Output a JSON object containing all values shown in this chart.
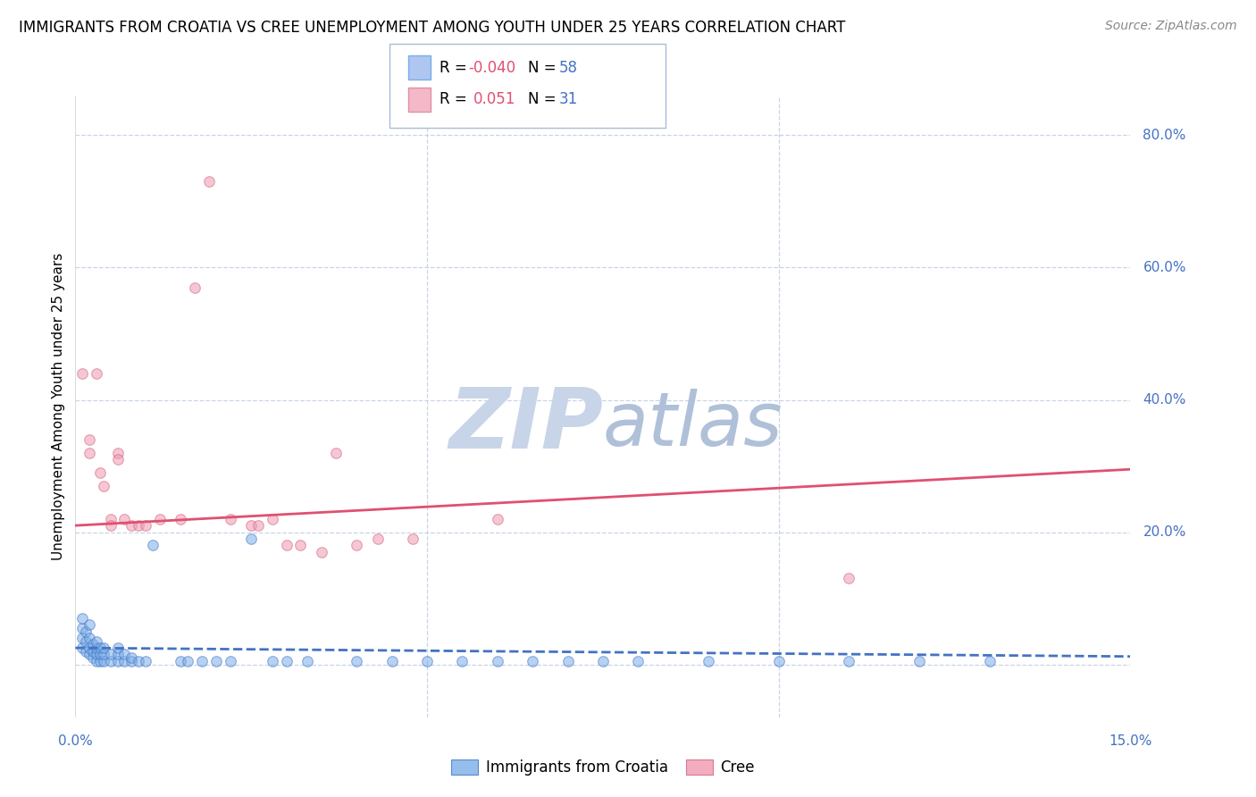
{
  "title": "IMMIGRANTS FROM CROATIA VS CREE UNEMPLOYMENT AMONG YOUTH UNDER 25 YEARS CORRELATION CHART",
  "source": "Source: ZipAtlas.com",
  "ylabel": "Unemployment Among Youth under 25 years",
  "x_min": 0.0,
  "x_max": 0.15,
  "y_min": -0.08,
  "y_max": 0.86,
  "y_ticks": [
    0.0,
    0.2,
    0.4,
    0.6,
    0.8
  ],
  "y_tick_labels": [
    "",
    "20.0%",
    "40.0%",
    "60.0%",
    "80.0%"
  ],
  "watermark_zip": "ZIP",
  "watermark_atlas": "atlas",
  "watermark_color_zip": "#c8d4e8",
  "watermark_color_atlas": "#b0c0d8",
  "blue_scatter": [
    [
      0.001,
      0.025
    ],
    [
      0.001,
      0.04
    ],
    [
      0.001,
      0.055
    ],
    [
      0.001,
      0.07
    ],
    [
      0.0015,
      0.02
    ],
    [
      0.0015,
      0.035
    ],
    [
      0.0015,
      0.05
    ],
    [
      0.002,
      0.015
    ],
    [
      0.002,
      0.025
    ],
    [
      0.002,
      0.04
    ],
    [
      0.002,
      0.06
    ],
    [
      0.0025,
      0.01
    ],
    [
      0.0025,
      0.02
    ],
    [
      0.0025,
      0.03
    ],
    [
      0.003,
      0.005
    ],
    [
      0.003,
      0.015
    ],
    [
      0.003,
      0.025
    ],
    [
      0.003,
      0.035
    ],
    [
      0.0035,
      0.005
    ],
    [
      0.0035,
      0.015
    ],
    [
      0.0035,
      0.025
    ],
    [
      0.004,
      0.005
    ],
    [
      0.004,
      0.015
    ],
    [
      0.004,
      0.025
    ],
    [
      0.005,
      0.005
    ],
    [
      0.005,
      0.015
    ],
    [
      0.006,
      0.005
    ],
    [
      0.006,
      0.015
    ],
    [
      0.006,
      0.025
    ],
    [
      0.007,
      0.005
    ],
    [
      0.007,
      0.015
    ],
    [
      0.008,
      0.005
    ],
    [
      0.008,
      0.01
    ],
    [
      0.009,
      0.005
    ],
    [
      0.01,
      0.005
    ],
    [
      0.011,
      0.18
    ],
    [
      0.015,
      0.005
    ],
    [
      0.016,
      0.005
    ],
    [
      0.018,
      0.005
    ],
    [
      0.02,
      0.005
    ],
    [
      0.022,
      0.005
    ],
    [
      0.025,
      0.19
    ],
    [
      0.028,
      0.005
    ],
    [
      0.03,
      0.005
    ],
    [
      0.033,
      0.005
    ],
    [
      0.04,
      0.005
    ],
    [
      0.045,
      0.005
    ],
    [
      0.05,
      0.005
    ],
    [
      0.055,
      0.005
    ],
    [
      0.06,
      0.005
    ],
    [
      0.065,
      0.005
    ],
    [
      0.07,
      0.005
    ],
    [
      0.075,
      0.005
    ],
    [
      0.08,
      0.005
    ],
    [
      0.09,
      0.005
    ],
    [
      0.1,
      0.005
    ],
    [
      0.11,
      0.005
    ],
    [
      0.12,
      0.005
    ],
    [
      0.13,
      0.005
    ]
  ],
  "pink_scatter": [
    [
      0.001,
      0.44
    ],
    [
      0.002,
      0.34
    ],
    [
      0.002,
      0.32
    ],
    [
      0.003,
      0.44
    ],
    [
      0.0035,
      0.29
    ],
    [
      0.004,
      0.27
    ],
    [
      0.005,
      0.22
    ],
    [
      0.005,
      0.21
    ],
    [
      0.006,
      0.32
    ],
    [
      0.006,
      0.31
    ],
    [
      0.007,
      0.22
    ],
    [
      0.008,
      0.21
    ],
    [
      0.009,
      0.21
    ],
    [
      0.01,
      0.21
    ],
    [
      0.012,
      0.22
    ],
    [
      0.015,
      0.22
    ],
    [
      0.017,
      0.57
    ],
    [
      0.019,
      0.73
    ],
    [
      0.022,
      0.22
    ],
    [
      0.025,
      0.21
    ],
    [
      0.026,
      0.21
    ],
    [
      0.028,
      0.22
    ],
    [
      0.03,
      0.18
    ],
    [
      0.032,
      0.18
    ],
    [
      0.035,
      0.17
    ],
    [
      0.037,
      0.32
    ],
    [
      0.04,
      0.18
    ],
    [
      0.043,
      0.19
    ],
    [
      0.048,
      0.19
    ],
    [
      0.06,
      0.22
    ],
    [
      0.11,
      0.13
    ]
  ],
  "blue_line": {
    "x": [
      0.0,
      0.15
    ],
    "y": [
      0.025,
      0.012
    ]
  },
  "pink_line": {
    "x": [
      0.0,
      0.15
    ],
    "y": [
      0.21,
      0.295
    ]
  },
  "blue_color": "#7aaee8",
  "pink_color": "#f099b0",
  "blue_edge_color": "#4472c4",
  "pink_edge_color": "#d06080",
  "blue_line_color": "#4472c4",
  "pink_line_color": "#e05070",
  "grid_color": "#c8d4e8",
  "background_color": "#ffffff",
  "scatter_size": 70,
  "scatter_alpha": 0.55,
  "tick_color": "#4472c4",
  "legend_box_color": "#dde8f4",
  "legend_box_edge": "#a8bcd8"
}
